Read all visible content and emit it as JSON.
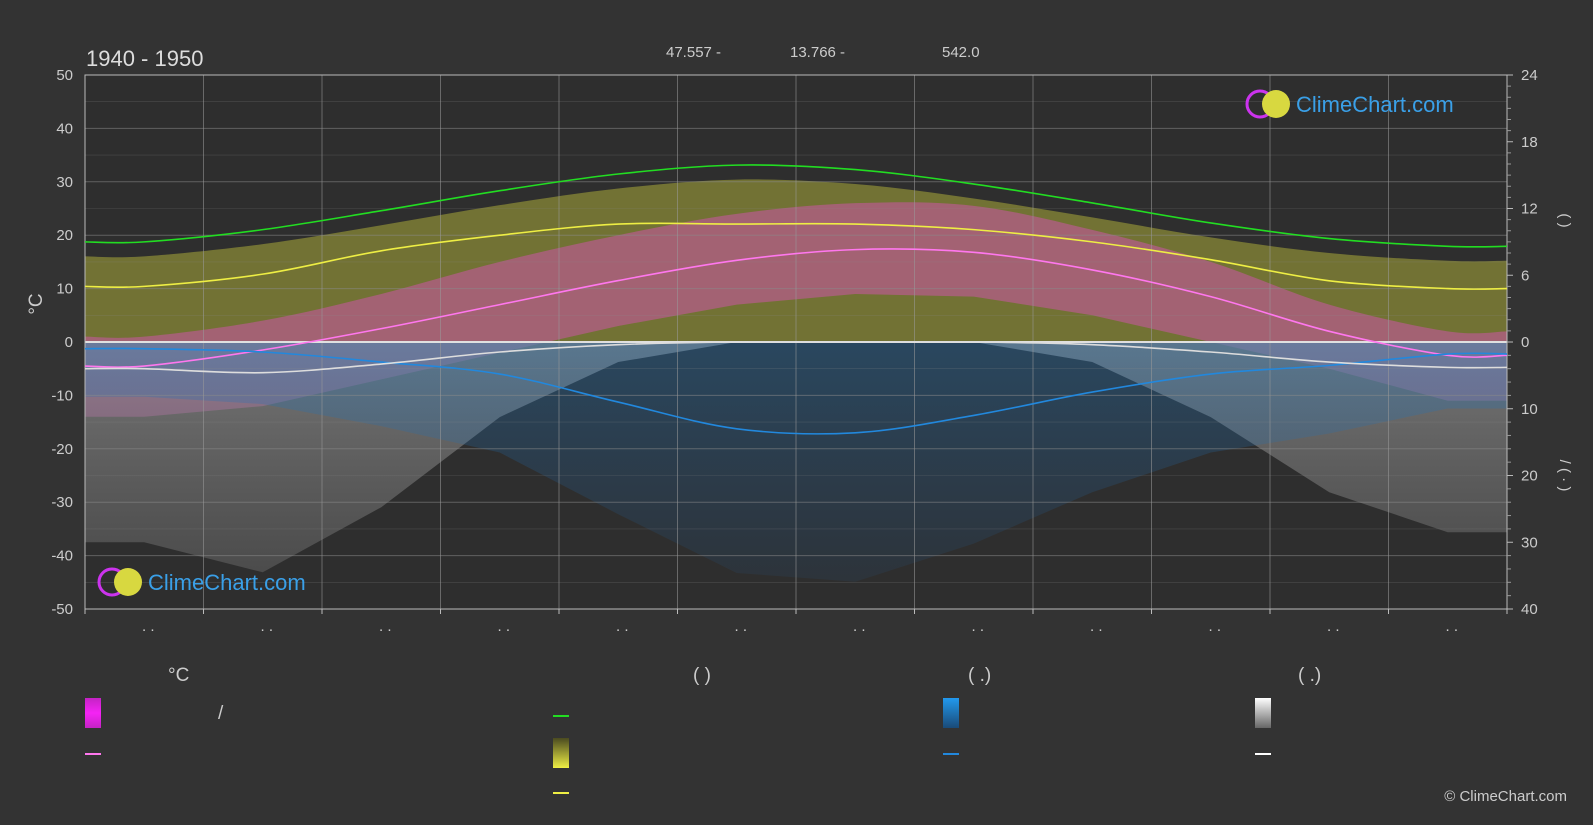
{
  "header": {
    "title": "1940 - 1950",
    "latitude": "47.557 -",
    "longitude": "13.766 -",
    "elevation": "542.0"
  },
  "logo_text": "ClimeChart.com",
  "copyright": "© ClimeChart.com",
  "colors": {
    "background": "#333333",
    "daylight": "#22dd22",
    "sunshine": "#eeee44",
    "sunshine_band": "#b5b53a",
    "temp_band": "#e050c0",
    "temp_mean": "#ff77ee",
    "rain": "#2288dd",
    "snow": "#dddddd",
    "snow_band": "#8a8a8a"
  },
  "chart_data": {
    "type": "line",
    "x_tick_labels": [
      ". .",
      ". .",
      ". .",
      ". .",
      ". .",
      ". .",
      ". .",
      ". .",
      ". .",
      ". .",
      ". .",
      ". ."
    ],
    "left_axis": {
      "unit": "°C",
      "ticks": [
        50,
        40,
        30,
        20,
        10,
        0,
        -10,
        -20,
        -30,
        -40,
        -50
      ],
      "ylim": [
        -50,
        50
      ]
    },
    "right_axis_top": {
      "ticks": [
        24,
        18,
        12,
        6,
        0
      ],
      "ylim": [
        0,
        24
      ],
      "label": "(      )"
    },
    "right_axis_bottom": {
      "ticks": [
        0,
        10,
        20,
        30,
        40
      ],
      "ylim": [
        0,
        40
      ],
      "label": "/  (  ·  )"
    },
    "series": [
      {
        "key": "daylight",
        "values": [
          9.0,
          10.1,
          11.8,
          13.6,
          15.1,
          15.9,
          15.5,
          14.2,
          12.5,
          10.7,
          9.3,
          8.6
        ]
      },
      {
        "key": "sunshine",
        "values": [
          5.0,
          6.1,
          8.2,
          9.6,
          10.6,
          10.6,
          10.6,
          10.1,
          9.0,
          7.4,
          5.5,
          4.8
        ]
      },
      {
        "key": "temp_mean",
        "values": [
          -4.5,
          -1.5,
          2.5,
          7.0,
          11.5,
          15.3,
          17.3,
          16.8,
          13.5,
          8.5,
          2.0,
          -2.5
        ]
      },
      {
        "key": "rain",
        "values": [
          1.0,
          1.5,
          3.0,
          4.8,
          9.0,
          13.0,
          13.6,
          11.0,
          7.5,
          4.8,
          3.5,
          1.8
        ]
      },
      {
        "key": "snow",
        "values": [
          4.0,
          4.6,
          3.3,
          1.5,
          0.4,
          0.0,
          0.0,
          0.0,
          0.4,
          1.5,
          3.0,
          3.8
        ]
      },
      {
        "key": "temp_band_max",
        "values": [
          1,
          4,
          9,
          15,
          20,
          24,
          26,
          25.5,
          21,
          15,
          7,
          2
        ]
      },
      {
        "key": "temp_band_min",
        "values": [
          -14,
          -12,
          -7,
          -2,
          3,
          7,
          9,
          8.5,
          5,
          0,
          -5,
          -11
        ]
      }
    ]
  },
  "legend": {
    "temp_header": "°C",
    "temp_item1": "/",
    "sun_header": "(          )",
    "rain_header": "(   .)",
    "snow_header": "(   .)"
  }
}
